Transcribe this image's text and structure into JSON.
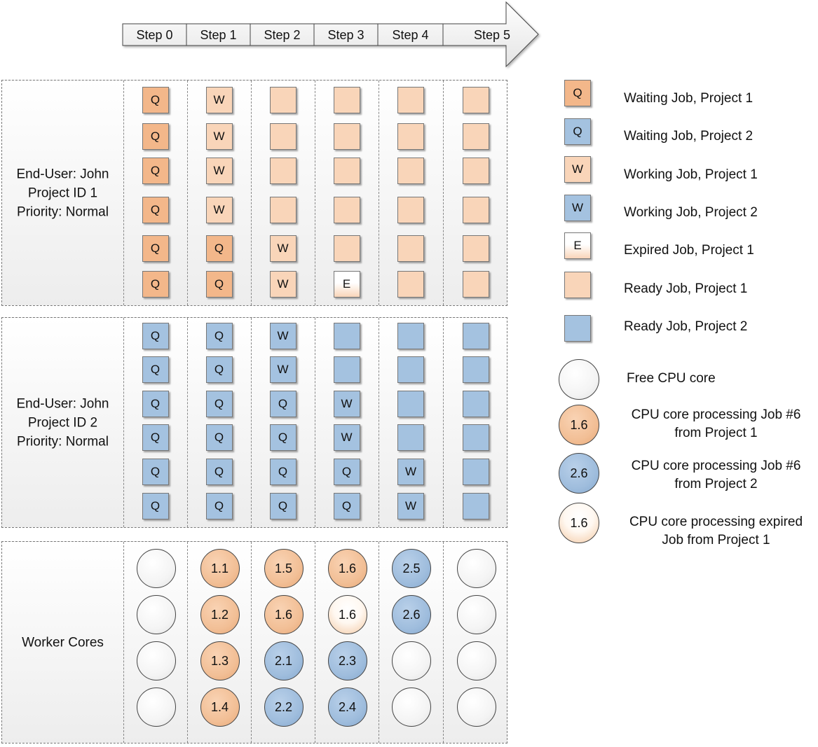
{
  "steps": [
    "Step 0",
    "Step 1",
    "Step 2",
    "Step 3",
    "Step 4",
    "Step 5"
  ],
  "groups": [
    {
      "label_lines": [
        "End-User: John",
        "Project ID 1",
        "Priority: Normal"
      ],
      "rows": [
        [
          "Q",
          "W",
          "R",
          "R",
          "R",
          "R"
        ],
        [
          "Q",
          "W",
          "R",
          "R",
          "R",
          "R"
        ],
        [
          "Q",
          "W",
          "R",
          "R",
          "R",
          "R"
        ],
        [
          "Q",
          "W",
          "R",
          "R",
          "R",
          "R"
        ],
        [
          "Q",
          "Q",
          "W",
          "R",
          "R",
          "R"
        ],
        [
          "Q",
          "Q",
          "W",
          "E",
          "R",
          "R"
        ]
      ]
    },
    {
      "label_lines": [
        "End-User: John",
        "Project ID 2",
        "Priority: Normal"
      ],
      "rows": [
        [
          "Q",
          "Q",
          "W",
          "R",
          "R",
          "R"
        ],
        [
          "Q",
          "Q",
          "W",
          "R",
          "R",
          "R"
        ],
        [
          "Q",
          "Q",
          "Q",
          "W",
          "R",
          "R"
        ],
        [
          "Q",
          "Q",
          "Q",
          "W",
          "R",
          "R"
        ],
        [
          "Q",
          "Q",
          "Q",
          "Q",
          "W",
          "R"
        ],
        [
          "Q",
          "Q",
          "Q",
          "Q",
          "W",
          "R"
        ]
      ]
    }
  ],
  "workers": {
    "label": "Worker Cores",
    "columns": [
      [
        {
          "t": "free",
          "v": ""
        },
        {
          "t": "free",
          "v": ""
        },
        {
          "t": "free",
          "v": ""
        },
        {
          "t": "free",
          "v": ""
        }
      ],
      [
        {
          "t": "p1",
          "v": "1.1"
        },
        {
          "t": "p1",
          "v": "1.2"
        },
        {
          "t": "p1",
          "v": "1.3"
        },
        {
          "t": "p1",
          "v": "1.4"
        }
      ],
      [
        {
          "t": "p1",
          "v": "1.5"
        },
        {
          "t": "p1",
          "v": "1.6"
        },
        {
          "t": "p2",
          "v": "2.1"
        },
        {
          "t": "p2",
          "v": "2.2"
        }
      ],
      [
        {
          "t": "p1",
          "v": "1.6"
        },
        {
          "t": "exp",
          "v": "1.6"
        },
        {
          "t": "p2",
          "v": "2.3"
        },
        {
          "t": "p2",
          "v": "2.4"
        }
      ],
      [
        {
          "t": "p2",
          "v": "2.5"
        },
        {
          "t": "p2",
          "v": "2.6"
        },
        {
          "t": "free",
          "v": ""
        },
        {
          "t": "free",
          "v": ""
        }
      ],
      [
        {
          "t": "free",
          "v": ""
        },
        {
          "t": "free",
          "v": ""
        },
        {
          "t": "free",
          "v": ""
        },
        {
          "t": "free",
          "v": ""
        }
      ]
    ]
  },
  "legend": {
    "squares": [
      {
        "symbol": "Q",
        "style": "wait1",
        "text": "Waiting Job, Project 1"
      },
      {
        "symbol": "Q",
        "style": "wait2",
        "text": "Waiting Job, Project 2"
      },
      {
        "symbol": "W",
        "style": "ready1",
        "text": "Working Job, Project 1"
      },
      {
        "symbol": "W",
        "style": "ready2",
        "text": "Working Job, Project 2"
      },
      {
        "symbol": "E",
        "style": "expired",
        "text": "Expired Job, Project 1"
      },
      {
        "symbol": "",
        "style": "ready1",
        "text": "Ready Job, Project 1"
      },
      {
        "symbol": "",
        "style": "ready2",
        "text": "Ready Job, Project 2"
      }
    ],
    "cores": [
      {
        "symbol": "",
        "style": "free",
        "lines": [
          "Free CPU core"
        ]
      },
      {
        "symbol": "1.6",
        "style": "p1",
        "lines": [
          "CPU core processing Job #6",
          "from Project 1"
        ]
      },
      {
        "symbol": "2.6",
        "style": "p2",
        "lines": [
          "CPU core processing Job #6",
          "from Project 2"
        ]
      },
      {
        "symbol": "1.6",
        "style": "exp",
        "lines": [
          "CPU core processing expired",
          "Job from Project 1"
        ]
      }
    ]
  },
  "colors": {
    "project1_waiting": "#f3b78a",
    "project1_ready": "#f9d5b9",
    "project2": "#a4c2e0",
    "core_project1": "#f2bf96",
    "core_project2": "#9fbddd"
  }
}
